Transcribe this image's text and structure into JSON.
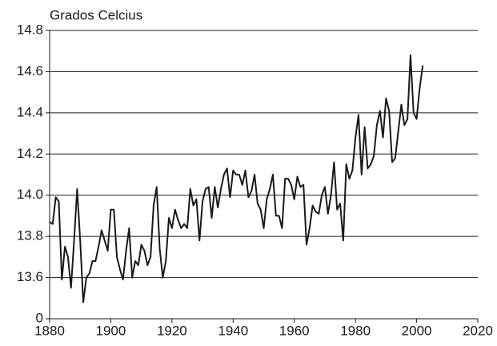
{
  "chart_data": {
    "type": "line",
    "title": "Grados Celcius",
    "x": [
      1880,
      1881,
      1882,
      1883,
      1884,
      1885,
      1886,
      1887,
      1888,
      1889,
      1890,
      1891,
      1892,
      1893,
      1894,
      1895,
      1896,
      1897,
      1898,
      1899,
      1900,
      1901,
      1902,
      1903,
      1904,
      1905,
      1906,
      1907,
      1908,
      1909,
      1910,
      1911,
      1912,
      1913,
      1914,
      1915,
      1916,
      1917,
      1918,
      1919,
      1920,
      1921,
      1922,
      1923,
      1924,
      1925,
      1926,
      1927,
      1928,
      1929,
      1930,
      1931,
      1932,
      1933,
      1934,
      1935,
      1936,
      1937,
      1938,
      1939,
      1940,
      1941,
      1942,
      1943,
      1944,
      1945,
      1946,
      1947,
      1948,
      1949,
      1950,
      1951,
      1952,
      1953,
      1954,
      1955,
      1956,
      1957,
      1958,
      1959,
      1960,
      1961,
      1962,
      1963,
      1964,
      1965,
      1966,
      1967,
      1968,
      1969,
      1970,
      1971,
      1972,
      1973,
      1974,
      1975,
      1976,
      1977,
      1978,
      1979,
      1980,
      1981,
      1982,
      1983,
      1984,
      1985,
      1986,
      1987,
      1988,
      1989,
      1990,
      1991,
      1992,
      1993,
      1994,
      1995,
      1996,
      1997,
      1998,
      1999,
      2000,
      2001,
      2002
    ],
    "values": [
      13.87,
      13.86,
      13.99,
      13.97,
      13.59,
      13.75,
      13.7,
      13.55,
      13.78,
      14.03,
      13.78,
      13.48,
      13.6,
      13.62,
      13.68,
      13.68,
      13.75,
      13.83,
      13.78,
      13.73,
      13.93,
      13.93,
      13.7,
      13.64,
      13.59,
      13.73,
      13.84,
      13.6,
      13.68,
      13.66,
      13.76,
      13.73,
      13.66,
      13.7,
      13.95,
      14.04,
      13.74,
      13.6,
      13.68,
      13.89,
      13.84,
      13.93,
      13.88,
      13.84,
      13.86,
      13.84,
      14.03,
      13.95,
      13.98,
      13.78,
      13.97,
      14.03,
      14.04,
      13.89,
      14.04,
      13.94,
      14.03,
      14.1,
      14.13,
      13.99,
      14.12,
      14.1,
      14.1,
      14.05,
      14.12,
      13.99,
      14.02,
      14.1,
      13.96,
      13.93,
      13.84,
      13.98,
      14.03,
      14.1,
      13.9,
      13.9,
      13.84,
      14.08,
      14.08,
      14.05,
      13.98,
      14.09,
      14.04,
      14.05,
      13.76,
      13.84,
      13.95,
      13.92,
      13.91,
      14.0,
      14.04,
      13.91,
      14.0,
      14.16,
      13.93,
      13.96,
      13.78,
      14.15,
      14.08,
      14.12,
      14.28,
      14.39,
      14.1,
      14.33,
      14.13,
      14.15,
      14.19,
      14.34,
      14.41,
      14.28,
      14.47,
      14.41,
      14.16,
      14.18,
      14.31,
      14.44,
      14.34,
      14.37,
      14.68,
      14.4,
      14.37,
      14.52,
      14.63
    ],
    "color": "#1a1a1a",
    "xlim": [
      1880,
      2020
    ],
    "xticks": [
      1880,
      1900,
      1920,
      1940,
      1960,
      1980,
      2000,
      2020
    ],
    "ylim": [
      13.4,
      14.8
    ],
    "yticks": [
      0,
      {
        "value": 13.6,
        "label": "13.6"
      },
      {
        "value": 13.8,
        "label": "13.8"
      },
      {
        "value": 14.0,
        "label": "14.0"
      },
      {
        "value": 14.2,
        "label": "14.2"
      },
      {
        "value": 14.4,
        "label": "14.4"
      },
      {
        "value": 14.6,
        "label": "14.6"
      },
      {
        "value": 14.8,
        "label": "14.8"
      }
    ],
    "broken_y_axis": true,
    "grid": true
  }
}
